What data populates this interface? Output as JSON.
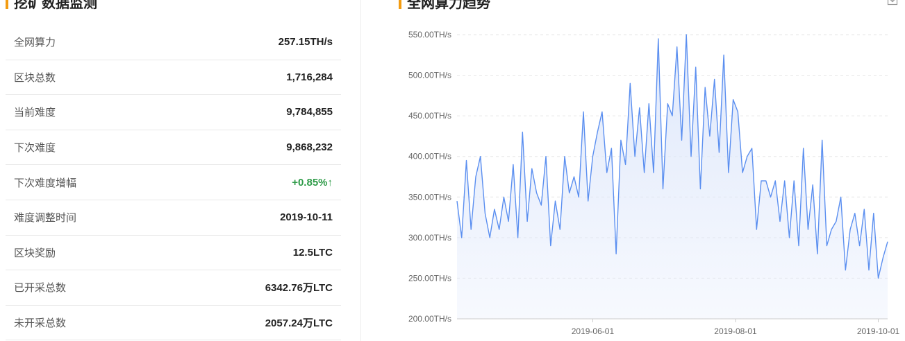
{
  "left_panel": {
    "title": "挖矿数据监测",
    "rows": [
      {
        "label": "全网算力",
        "value": "257.15TH/s"
      },
      {
        "label": "区块总数",
        "value": "1,716,284"
      },
      {
        "label": "当前难度",
        "value": "9,784,855"
      },
      {
        "label": "下次难度",
        "value": "9,868,232"
      },
      {
        "label": "下次难度增幅",
        "value": "+0.85%↑"
      },
      {
        "label": "难度调整时间",
        "value": "2019-10-11"
      },
      {
        "label": "区块奖励",
        "value": "12.5LTC"
      },
      {
        "label": "已开采总数",
        "value": "6342.76万LTC"
      },
      {
        "label": "未开采总数",
        "value": "2057.24万LTC"
      }
    ],
    "positive_color": "#2e9b48"
  },
  "right_panel": {
    "title": "全网算力趋势",
    "download_icon": "download-icon"
  },
  "chart_data": {
    "type": "area",
    "title": "全网算力趋势",
    "xlabel": "",
    "ylabel": "",
    "unit": "TH/s",
    "y_ticks": [
      "550.00TH/s",
      "500.00TH/s",
      "450.00TH/s",
      "400.00TH/s",
      "350.00TH/s",
      "300.00TH/s",
      "250.00TH/s",
      "200.00TH/s"
    ],
    "x_ticks": [
      "2019-06-01",
      "2019-08-01",
      "2019-10-01"
    ],
    "ylim": [
      200,
      550
    ],
    "x_range": [
      "2019-04-04",
      "2019-10-05"
    ],
    "grid": true,
    "line_color": "#5b8ff0",
    "fill_color": "#dfe8fb",
    "series": [
      {
        "x": [
          "2019-04-04",
          "2019-04-06",
          "2019-04-08",
          "2019-04-10",
          "2019-04-12",
          "2019-04-14",
          "2019-04-16",
          "2019-04-18",
          "2019-04-20",
          "2019-04-22",
          "2019-04-24",
          "2019-04-26",
          "2019-04-28",
          "2019-04-30",
          "2019-05-02",
          "2019-05-04",
          "2019-05-06",
          "2019-05-08",
          "2019-05-10",
          "2019-05-12",
          "2019-05-14",
          "2019-05-16",
          "2019-05-18",
          "2019-05-20",
          "2019-05-22",
          "2019-05-24",
          "2019-05-26",
          "2019-05-28",
          "2019-05-30",
          "2019-06-01",
          "2019-06-03",
          "2019-06-05",
          "2019-06-07",
          "2019-06-09",
          "2019-06-11",
          "2019-06-13",
          "2019-06-15",
          "2019-06-17",
          "2019-06-19",
          "2019-06-21",
          "2019-06-23",
          "2019-06-25",
          "2019-06-27",
          "2019-06-29",
          "2019-07-01",
          "2019-07-03",
          "2019-07-05",
          "2019-07-07",
          "2019-07-09",
          "2019-07-11",
          "2019-07-13",
          "2019-07-15",
          "2019-07-17",
          "2019-07-19",
          "2019-07-21",
          "2019-07-23",
          "2019-07-25",
          "2019-07-27",
          "2019-07-29",
          "2019-07-31",
          "2019-08-02",
          "2019-08-04",
          "2019-08-06",
          "2019-08-08",
          "2019-08-10",
          "2019-08-12",
          "2019-08-14",
          "2019-08-16",
          "2019-08-18",
          "2019-08-20",
          "2019-08-22",
          "2019-08-24",
          "2019-08-26",
          "2019-08-28",
          "2019-08-30",
          "2019-09-01",
          "2019-09-03",
          "2019-09-05",
          "2019-09-07",
          "2019-09-09",
          "2019-09-11",
          "2019-09-13",
          "2019-09-15",
          "2019-09-17",
          "2019-09-19",
          "2019-09-21",
          "2019-09-23",
          "2019-09-25",
          "2019-09-27",
          "2019-09-29",
          "2019-10-01",
          "2019-10-03",
          "2019-10-05"
        ],
        "values": [
          345,
          300,
          395,
          310,
          375,
          400,
          330,
          300,
          335,
          310,
          350,
          320,
          390,
          300,
          430,
          320,
          385,
          355,
          340,
          400,
          290,
          345,
          310,
          400,
          355,
          375,
          350,
          455,
          345,
          400,
          430,
          455,
          380,
          410,
          280,
          420,
          390,
          490,
          400,
          460,
          380,
          465,
          380,
          545,
          360,
          465,
          450,
          535,
          420,
          550,
          400,
          510,
          360,
          485,
          425,
          495,
          405,
          525,
          380,
          470,
          455,
          380,
          400,
          410,
          310,
          370,
          370,
          350,
          370,
          320,
          370,
          300,
          370,
          290,
          410,
          310,
          365,
          280,
          420,
          290,
          310,
          320,
          350,
          260,
          310,
          330,
          290,
          335,
          260,
          330,
          250,
          275,
          295
        ]
      }
    ]
  }
}
